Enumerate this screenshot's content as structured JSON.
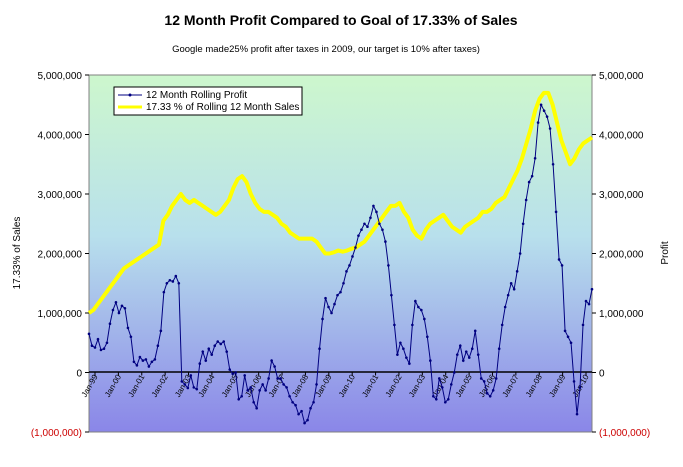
{
  "chart_data": {
    "type": "line",
    "title": "12 Month Profit Compared to Goal of 17.33%  of  Sales",
    "subtitle": "Google made25% profit after taxes in 2009, our target is 10% after taxes)",
    "ylabel_left": "17.33% of Sales",
    "ylabel_right": "Profit",
    "ylim": [
      -1000000,
      5000000
    ],
    "yticks": [
      "(1,000,000)",
      "0",
      "1,000,000",
      "2,000,000",
      "3,000,000",
      "4,000,000",
      "5,000,000"
    ],
    "ytick_values": [
      -1000000,
      0,
      1000000,
      2000000,
      3000000,
      4000000,
      5000000
    ],
    "x_tick_labels": [
      "Jan-99",
      "Jan-00",
      "Jan-01",
      "Jan-02",
      "Jan-03",
      "Jan-04",
      "Jan-05",
      "Jan-06",
      "Jan-07",
      "Jan-08",
      "Jan-09",
      "Jan-10",
      "Jan-01",
      "Jan-02",
      "Jan-03",
      "Jan-04",
      "Jan-05",
      "Jan-06",
      "Jan-07",
      "Jan-08",
      "Jan-09",
      "Jan-10"
    ],
    "legend_position": "top-left",
    "grid": false,
    "series": [
      {
        "name": "12 Month Rolling Profit",
        "color": "#000080",
        "marker": "dot",
        "values": [
          650000,
          450000,
          420000,
          560000,
          380000,
          400000,
          500000,
          820000,
          1050000,
          1180000,
          1000000,
          1120000,
          1080000,
          750000,
          600000,
          180000,
          120000,
          260000,
          200000,
          220000,
          100000,
          180000,
          220000,
          450000,
          700000,
          1350000,
          1500000,
          1550000,
          1530000,
          1620000,
          1500000,
          -150000,
          -200000,
          -260000,
          -50000,
          -250000,
          -280000,
          150000,
          350000,
          200000,
          400000,
          300000,
          450000,
          520000,
          480000,
          520000,
          350000,
          50000,
          -20000,
          0,
          -450000,
          -400000,
          -50000,
          -300000,
          -250000,
          -500000,
          -600000,
          -300000,
          -200000,
          -300000,
          -100000,
          200000,
          100000,
          -100000,
          -100000,
          -200000,
          -250000,
          -400000,
          -500000,
          -550000,
          -700000,
          -650000,
          -850000,
          -800000,
          -600000,
          -500000,
          -200000,
          400000,
          900000,
          1250000,
          1100000,
          1000000,
          1150000,
          1300000,
          1350000,
          1500000,
          1700000,
          1800000,
          1950000,
          2100000,
          2300000,
          2400000,
          2500000,
          2450000,
          2600000,
          2800000,
          2700000,
          2500000,
          2400000,
          2200000,
          1800000,
          1300000,
          800000,
          300000,
          500000,
          400000,
          250000,
          150000,
          800000,
          1200000,
          1100000,
          1050000,
          900000,
          600000,
          200000,
          -400000,
          -450000,
          -100000,
          -250000,
          -500000,
          -450000,
          -200000,
          0,
          300000,
          450000,
          200000,
          350000,
          250000,
          400000,
          700000,
          300000,
          -100000,
          -150000,
          -350000,
          -400000,
          -300000,
          -100000,
          400000,
          800000,
          1100000,
          1300000,
          1500000,
          1400000,
          1700000,
          2000000,
          2500000,
          2900000,
          3200000,
          3300000,
          3600000,
          4200000,
          4500000,
          4400000,
          4300000,
          4100000,
          3500000,
          2700000,
          1900000,
          1800000,
          700000,
          600000,
          500000,
          -150000,
          -700000,
          -250000,
          800000,
          1200000,
          1150000,
          1400000
        ]
      },
      {
        "name": "17.33 % of Rolling 12 Month Sales",
        "color": "#ffff00",
        "values": [
          1000000,
          1050000,
          1150000,
          1250000,
          1350000,
          1450000,
          1550000,
          1650000,
          1750000,
          1800000,
          1850000,
          1900000,
          1950000,
          2000000,
          2050000,
          2100000,
          2150000,
          2550000,
          2650000,
          2800000,
          2900000,
          3000000,
          2900000,
          2850000,
          2900000,
          2850000,
          2800000,
          2750000,
          2700000,
          2650000,
          2700000,
          2800000,
          2900000,
          3100000,
          3250000,
          3300000,
          3200000,
          3000000,
          2850000,
          2750000,
          2700000,
          2700000,
          2650000,
          2600000,
          2500000,
          2450000,
          2350000,
          2300000,
          2250000,
          2250000,
          2250000,
          2250000,
          2200000,
          2100000,
          2000000,
          2000000,
          2020000,
          2050000,
          2030000,
          2050000,
          2080000,
          2100000,
          2150000,
          2200000,
          2300000,
          2400000,
          2500000,
          2600000,
          2700000,
          2800000,
          2800000,
          2850000,
          2700000,
          2600000,
          2400000,
          2300000,
          2250000,
          2400000,
          2500000,
          2550000,
          2600000,
          2650000,
          2550000,
          2450000,
          2400000,
          2350000,
          2450000,
          2500000,
          2550000,
          2600000,
          2700000,
          2700000,
          2750000,
          2850000,
          2900000,
          2950000,
          3100000,
          3250000,
          3400000,
          3600000,
          3850000,
          4100000,
          4400000,
          4600000,
          4700000,
          4700000,
          4500000,
          4200000,
          3900000,
          3700000,
          3500000,
          3600000,
          3750000,
          3850000,
          3900000,
          3950000
        ]
      }
    ]
  }
}
